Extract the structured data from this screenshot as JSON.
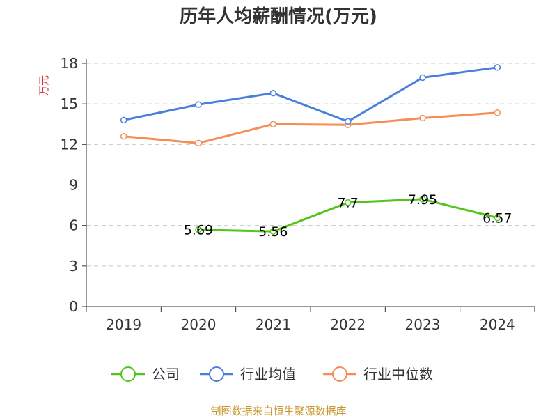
{
  "chart_data": {
    "type": "line",
    "title": "历年人均薪酬情况(万元)",
    "ylabel": "万元",
    "xlabel": "",
    "categories": [
      "2019",
      "2020",
      "2021",
      "2022",
      "2023",
      "2024"
    ],
    "ylim": [
      0,
      18
    ],
    "yticks": [
      0,
      3,
      6,
      9,
      12,
      15,
      18
    ],
    "grid": true,
    "legend_position": "bottom",
    "series": [
      {
        "name": "公司",
        "color": "#52c41a",
        "values": [
          null,
          5.69,
          5.56,
          7.7,
          7.95,
          6.57
        ],
        "labels": [
          "",
          "5.69",
          "5.56",
          "7.7",
          "7.95",
          "6.57"
        ],
        "show_labels": true
      },
      {
        "name": "行业均值",
        "color": "#4a7fdc",
        "values": [
          13.8,
          14.95,
          15.8,
          13.7,
          16.95,
          17.7
        ],
        "show_labels": false
      },
      {
        "name": "行业中位数",
        "color": "#f58d55",
        "values": [
          12.6,
          12.1,
          13.5,
          13.45,
          13.95,
          14.35
        ],
        "show_labels": false
      }
    ],
    "source": "制图数据来自恒生聚源数据库"
  }
}
